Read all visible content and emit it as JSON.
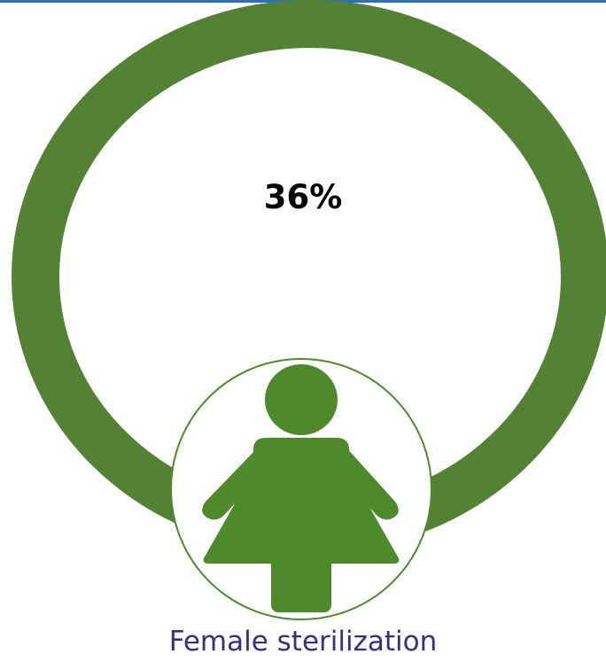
{
  "stat": {
    "percent_label": "36%",
    "fraction": 0.36
  },
  "caption": {
    "label": "Female sterilization"
  },
  "icon": {
    "name": "female-person-icon"
  },
  "colors": {
    "ring": "#548235",
    "figure": "#4e8a2c",
    "caption": "#3b2d86",
    "top_rule": "#2f6fb5"
  }
}
